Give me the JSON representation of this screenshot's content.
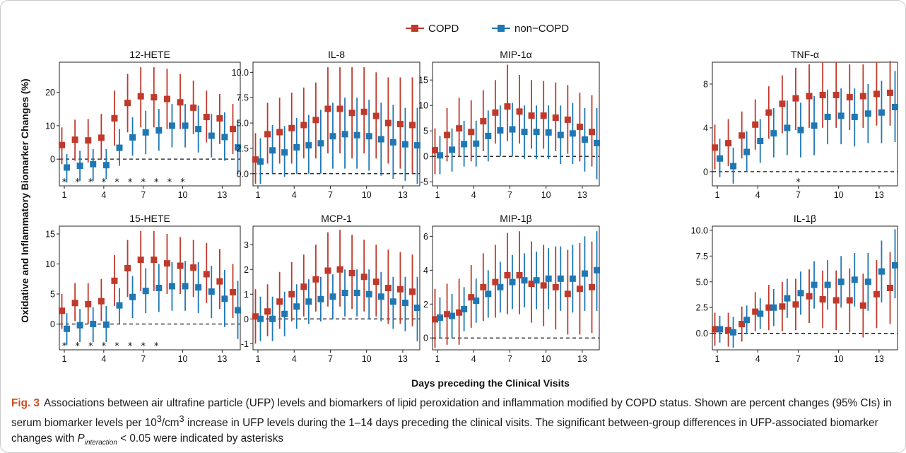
{
  "figure": {
    "ylabel": "Oxidative and Inflammatory Biomarker Changes (%)",
    "xlabel": "Days preceding the Clinical Visits",
    "legend": [
      {
        "name": "COPD",
        "color": "#c0392b"
      },
      {
        "name": "non−COPD",
        "color": "#1f78b4"
      }
    ]
  },
  "caption": {
    "fig_label": "Fig. 3",
    "text_1": "Associations between air ultrafine particle (UFP) levels and biomarkers of lipid peroxidation and inflammation modified by COPD status. Shown are percent changes (95% CIs) in serum biomarker levels per 10",
    "sup": "3",
    "text_2": "/cm",
    "sup2": "3",
    "text_3": " increase in UFP levels during the 1–14 days preceding the clinical visits. The significant between-group differences in UFP-associated biomarker changes with ",
    "p_main": "P",
    "p_sub": "interaction",
    "text_4": " < 0.05 were indicated by asterisks"
  },
  "chart_data": [
    {
      "type": "scatter",
      "title": "12-HETE",
      "x_ticks": [
        1,
        4,
        7,
        10,
        13
      ],
      "y_ticks": [
        0,
        10,
        20
      ],
      "ylim": [
        -8,
        29
      ],
      "stars": [
        1,
        2,
        3,
        4,
        5,
        6,
        7,
        8,
        9,
        10
      ],
      "series": [
        {
          "name": "COPD",
          "values": [
            4.2,
            5.8,
            5.6,
            6.4,
            12.2,
            16.8,
            18.8,
            18.5,
            18.0,
            17.0,
            15.4,
            12.6,
            12.2,
            9.0
          ],
          "lower": [
            -1.5,
            -0.5,
            -1.0,
            -0.2,
            4.0,
            8.0,
            9.5,
            9.5,
            9.0,
            9.0,
            7.5,
            5.0,
            4.5,
            1.5
          ],
          "upper": [
            9.5,
            11.8,
            12.0,
            13.5,
            20.5,
            25.5,
            27.5,
            27.5,
            27.0,
            25.5,
            23.5,
            20.5,
            19.5,
            16.5
          ]
        },
        {
          "name": "non−COPD",
          "values": [
            -2.5,
            -2.0,
            -1.5,
            -1.8,
            3.4,
            6.5,
            8.0,
            8.6,
            10.0,
            10.0,
            9.0,
            7.0,
            6.6,
            3.5
          ],
          "lower": [
            -7.0,
            -6.5,
            -6.5,
            -6.0,
            -2.0,
            1.0,
            1.5,
            2.5,
            3.5,
            3.5,
            2.0,
            0.5,
            -0.5,
            -4.5
          ],
          "upper": [
            1.5,
            2.5,
            3.0,
            3.0,
            9.0,
            12.5,
            14.5,
            15.0,
            16.5,
            16.5,
            16.0,
            13.5,
            14.0,
            11.5
          ]
        }
      ]
    },
    {
      "type": "scatter",
      "title": "IL-8",
      "x_ticks": [
        1,
        4,
        7,
        10,
        13
      ],
      "y_ticks": [
        0.0,
        2.5,
        5.0,
        7.5,
        10.0
      ],
      "ylim": [
        -1.2,
        11.0
      ],
      "stars": [],
      "series": [
        {
          "name": "COPD",
          "values": [
            1.4,
            3.9,
            4.1,
            4.5,
            4.8,
            5.3,
            6.4,
            6.4,
            6.0,
            6.1,
            5.7,
            5.0,
            4.9,
            4.8
          ],
          "lower": [
            -1.0,
            1.0,
            1.0,
            1.0,
            1.5,
            1.5,
            2.0,
            2.0,
            1.5,
            2.0,
            1.5,
            1.0,
            0.5,
            0.0
          ],
          "upper": [
            4.0,
            7.0,
            7.5,
            8.0,
            8.5,
            9.0,
            10.5,
            10.5,
            10.5,
            10.5,
            10.0,
            9.5,
            9.5,
            9.5
          ]
        },
        {
          "name": "non−COPD",
          "values": [
            1.2,
            2.3,
            2.1,
            2.6,
            2.8,
            3.0,
            3.7,
            3.9,
            3.8,
            3.7,
            3.4,
            3.1,
            2.9,
            2.8
          ],
          "lower": [
            -1.0,
            0.0,
            -0.3,
            0.0,
            0.0,
            0.0,
            0.5,
            0.5,
            0.5,
            0.3,
            -0.2,
            -0.5,
            -0.7,
            -1.0
          ],
          "upper": [
            3.5,
            4.8,
            4.7,
            5.5,
            5.8,
            6.3,
            7.0,
            7.5,
            7.5,
            7.3,
            7.0,
            6.8,
            6.5,
            6.5
          ]
        }
      ]
    },
    {
      "type": "scatter",
      "title": "MIP-1α",
      "x_ticks": [
        1,
        4,
        7,
        10,
        13
      ],
      "y_ticks": [
        -5,
        0,
        5,
        10,
        15
      ],
      "ylim": [
        -5.8,
        18.5
      ],
      "stars": [],
      "series": [
        {
          "name": "COPD",
          "values": [
            1.2,
            4.2,
            5.5,
            4.8,
            6.9,
            8.6,
            9.8,
            8.8,
            8.0,
            8.0,
            7.6,
            7.2,
            5.8,
            4.8
          ],
          "lower": [
            -3.5,
            -1.0,
            0.0,
            -1.0,
            1.0,
            2.5,
            3.0,
            2.5,
            1.5,
            1.5,
            1.0,
            0.5,
            -1.0,
            -2.0
          ],
          "upper": [
            5.5,
            9.5,
            11.5,
            11.0,
            13.0,
            15.0,
            18.0,
            16.0,
            15.0,
            14.8,
            14.5,
            14.0,
            12.5,
            12.0
          ]
        },
        {
          "name": "non−COPD",
          "values": [
            0.2,
            1.3,
            2.4,
            2.5,
            4.0,
            5.1,
            5.3,
            4.8,
            4.8,
            4.7,
            4.2,
            4.5,
            3.3,
            2.6
          ],
          "lower": [
            -3.5,
            -3.0,
            -2.0,
            -2.0,
            -1.0,
            0.0,
            0.0,
            -0.5,
            -0.5,
            -0.5,
            -1.5,
            -1.5,
            -3.0,
            -4.5
          ],
          "upper": [
            4.0,
            5.5,
            7.0,
            7.0,
            9.0,
            10.0,
            10.5,
            10.0,
            10.0,
            10.0,
            10.0,
            10.5,
            9.5,
            9.5
          ]
        }
      ]
    },
    {
      "type": "scatter",
      "title": "TNF-α",
      "x_ticks": [
        1,
        4,
        7,
        10,
        13
      ],
      "y_ticks": [
        0,
        4,
        8
      ],
      "ylim": [
        -1.3,
        10.0
      ],
      "stars": [
        7
      ],
      "series": [
        {
          "name": "COPD",
          "values": [
            2.2,
            2.6,
            3.3,
            4.3,
            5.4,
            6.2,
            6.7,
            6.9,
            7.0,
            7.0,
            6.8,
            6.9,
            7.1,
            7.2
          ],
          "lower": [
            0.2,
            0.5,
            1.2,
            2.0,
            3.0,
            3.5,
            3.8,
            4.0,
            4.0,
            4.0,
            3.8,
            4.0,
            4.2,
            4.2
          ],
          "upper": [
            4.3,
            4.8,
            5.5,
            6.6,
            7.8,
            8.8,
            9.5,
            9.8,
            10.0,
            10.0,
            9.8,
            9.8,
            10.0,
            10.1
          ]
        },
        {
          "name": "non−COPD",
          "values": [
            1.2,
            0.5,
            1.8,
            2.8,
            3.5,
            4.0,
            3.8,
            4.2,
            5.0,
            5.1,
            5.0,
            5.3,
            5.4,
            5.9
          ],
          "lower": [
            -0.5,
            -1.1,
            0.0,
            0.8,
            1.3,
            1.5,
            1.3,
            1.5,
            2.5,
            2.5,
            2.3,
            2.6,
            2.6,
            2.7
          ],
          "upper": [
            3.0,
            2.2,
            3.7,
            4.8,
            5.8,
            6.5,
            6.3,
            6.9,
            7.5,
            7.6,
            7.6,
            8.0,
            8.3,
            9.2
          ]
        }
      ]
    },
    {
      "type": "scatter",
      "title": "15-HETE",
      "x_ticks": [
        1,
        4,
        7,
        10,
        13
      ],
      "y_ticks": [
        0,
        5,
        10,
        15
      ],
      "ylim": [
        -4.3,
        16.3
      ],
      "stars": [
        1,
        2,
        3,
        4,
        5,
        6,
        7,
        8
      ],
      "series": [
        {
          "name": "COPD",
          "values": [
            2.2,
            3.5,
            3.3,
            3.8,
            7.2,
            9.3,
            10.7,
            10.7,
            10.1,
            9.7,
            9.4,
            8.3,
            7.1,
            5.3
          ],
          "lower": [
            -0.8,
            0.5,
            0.0,
            0.5,
            3.0,
            4.5,
            5.5,
            5.5,
            5.0,
            5.0,
            4.5,
            3.5,
            2.5,
            1.0
          ],
          "upper": [
            5.0,
            6.8,
            6.8,
            7.5,
            11.5,
            14.0,
            15.5,
            15.5,
            15.0,
            14.5,
            14.0,
            13.5,
            12.5,
            10.0
          ]
        },
        {
          "name": "non−COPD",
          "values": [
            -0.8,
            -0.2,
            0.0,
            -0.1,
            3.1,
            4.5,
            5.5,
            6.0,
            6.3,
            6.3,
            6.1,
            5.4,
            4.2,
            2.3
          ],
          "lower": [
            -3.5,
            -3.0,
            -3.0,
            -3.0,
            0.0,
            1.0,
            1.8,
            2.0,
            2.2,
            2.2,
            1.8,
            1.0,
            -0.5,
            -2.5
          ],
          "upper": [
            1.8,
            2.5,
            2.8,
            3.0,
            6.0,
            8.0,
            9.3,
            10.0,
            10.3,
            10.5,
            10.3,
            9.7,
            9.0,
            7.2
          ]
        }
      ]
    },
    {
      "type": "scatter",
      "title": "MCP-1",
      "x_ticks": [
        1,
        4,
        7,
        10,
        13
      ],
      "y_ticks": [
        -1,
        0,
        1,
        2,
        3
      ],
      "ylim": [
        -1.25,
        3.75
      ],
      "stars": [],
      "series": [
        {
          "name": "COPD",
          "values": [
            0.1,
            0.3,
            0.7,
            1.0,
            1.3,
            1.6,
            1.95,
            2.0,
            1.85,
            1.7,
            1.5,
            1.25,
            1.2,
            1.1
          ],
          "lower": [
            -1.0,
            -0.7,
            -0.4,
            -0.1,
            0.1,
            0.3,
            0.5,
            0.5,
            0.4,
            0.3,
            0.1,
            -0.2,
            -0.2,
            -0.3
          ],
          "upper": [
            1.2,
            1.4,
            1.9,
            2.3,
            2.6,
            3.0,
            3.5,
            3.6,
            3.4,
            3.2,
            3.0,
            2.8,
            2.7,
            2.6
          ]
        },
        {
          "name": "non−COPD",
          "values": [
            0.0,
            0.0,
            0.2,
            0.5,
            0.7,
            0.8,
            0.9,
            1.05,
            1.05,
            1.0,
            0.9,
            0.7,
            0.65,
            0.45
          ],
          "lower": [
            -0.9,
            -0.9,
            -0.7,
            -0.4,
            -0.2,
            -0.1,
            0.0,
            0.1,
            0.1,
            0.0,
            -0.1,
            -0.4,
            -0.5,
            -0.9
          ],
          "upper": [
            0.9,
            0.9,
            1.1,
            1.4,
            1.6,
            1.7,
            1.8,
            2.0,
            2.0,
            2.0,
            1.9,
            1.7,
            1.7,
            1.7
          ]
        }
      ]
    },
    {
      "type": "scatter",
      "title": "MIP-1β",
      "x_ticks": [
        1,
        4,
        7,
        10,
        13
      ],
      "y_ticks": [
        0,
        2,
        4,
        6
      ],
      "ylim": [
        -0.7,
        6.6
      ],
      "stars": [],
      "series": [
        {
          "name": "COPD",
          "values": [
            1.1,
            1.4,
            1.5,
            2.4,
            3.0,
            3.3,
            3.7,
            3.7,
            3.2,
            3.1,
            3.0,
            2.6,
            2.9,
            3.0
          ],
          "lower": [
            -0.6,
            -0.4,
            -0.4,
            0.6,
            1.0,
            1.2,
            1.4,
            1.4,
            0.9,
            0.7,
            0.5,
            0.2,
            0.2,
            0.3
          ],
          "upper": [
            2.9,
            3.2,
            3.5,
            4.3,
            5.0,
            5.5,
            6.2,
            6.3,
            5.7,
            5.5,
            5.4,
            5.2,
            5.6,
            5.7
          ]
        },
        {
          "name": "non−COPD",
          "values": [
            1.2,
            1.3,
            1.7,
            2.2,
            2.6,
            3.0,
            3.3,
            3.4,
            3.4,
            3.5,
            3.5,
            3.5,
            3.8,
            4.0
          ],
          "lower": [
            0.0,
            0.0,
            0.4,
            0.9,
            1.2,
            1.5,
            1.7,
            1.8,
            1.7,
            1.7,
            1.6,
            1.5,
            1.6,
            1.6
          ],
          "upper": [
            2.4,
            2.6,
            3.0,
            3.5,
            4.0,
            4.5,
            4.9,
            5.0,
            5.1,
            5.3,
            5.4,
            5.5,
            6.0,
            6.3
          ]
        }
      ]
    },
    {
      "type": "scatter",
      "title": "IL-1β",
      "x_ticks": [
        1,
        4,
        7,
        10,
        13
      ],
      "y_ticks": [
        0.0,
        2.5,
        5.0,
        7.5,
        10.0
      ],
      "ylim": [
        -1.6,
        10.4
      ],
      "stars": [],
      "series": [
        {
          "name": "COPD",
          "values": [
            0.4,
            0.3,
            0.9,
            2.1,
            2.5,
            2.6,
            2.8,
            3.6,
            3.3,
            3.2,
            3.2,
            2.7,
            3.8,
            4.4
          ],
          "lower": [
            -1.2,
            -1.3,
            -0.8,
            0.2,
            0.3,
            0.2,
            0.3,
            1.0,
            0.5,
            0.3,
            0.1,
            -0.4,
            0.5,
            0.9
          ],
          "upper": [
            2.0,
            2.0,
            2.6,
            4.0,
            4.7,
            5.0,
            5.3,
            6.2,
            6.1,
            6.1,
            6.3,
            5.8,
            7.1,
            7.9
          ]
        },
        {
          "name": "non−COPD",
          "values": [
            0.4,
            0.1,
            1.3,
            1.9,
            2.5,
            3.4,
            3.9,
            4.7,
            4.7,
            5.0,
            5.2,
            5.0,
            6.0,
            6.6
          ],
          "lower": [
            -0.9,
            -1.4,
            -0.1,
            0.4,
            0.7,
            1.5,
            1.8,
            2.4,
            2.3,
            2.5,
            2.6,
            2.2,
            3.0,
            3.4
          ],
          "upper": [
            1.7,
            1.6,
            2.7,
            3.4,
            4.3,
            5.3,
            6.0,
            7.0,
            7.1,
            7.5,
            7.8,
            7.8,
            9.0,
            10.1
          ]
        }
      ]
    }
  ]
}
